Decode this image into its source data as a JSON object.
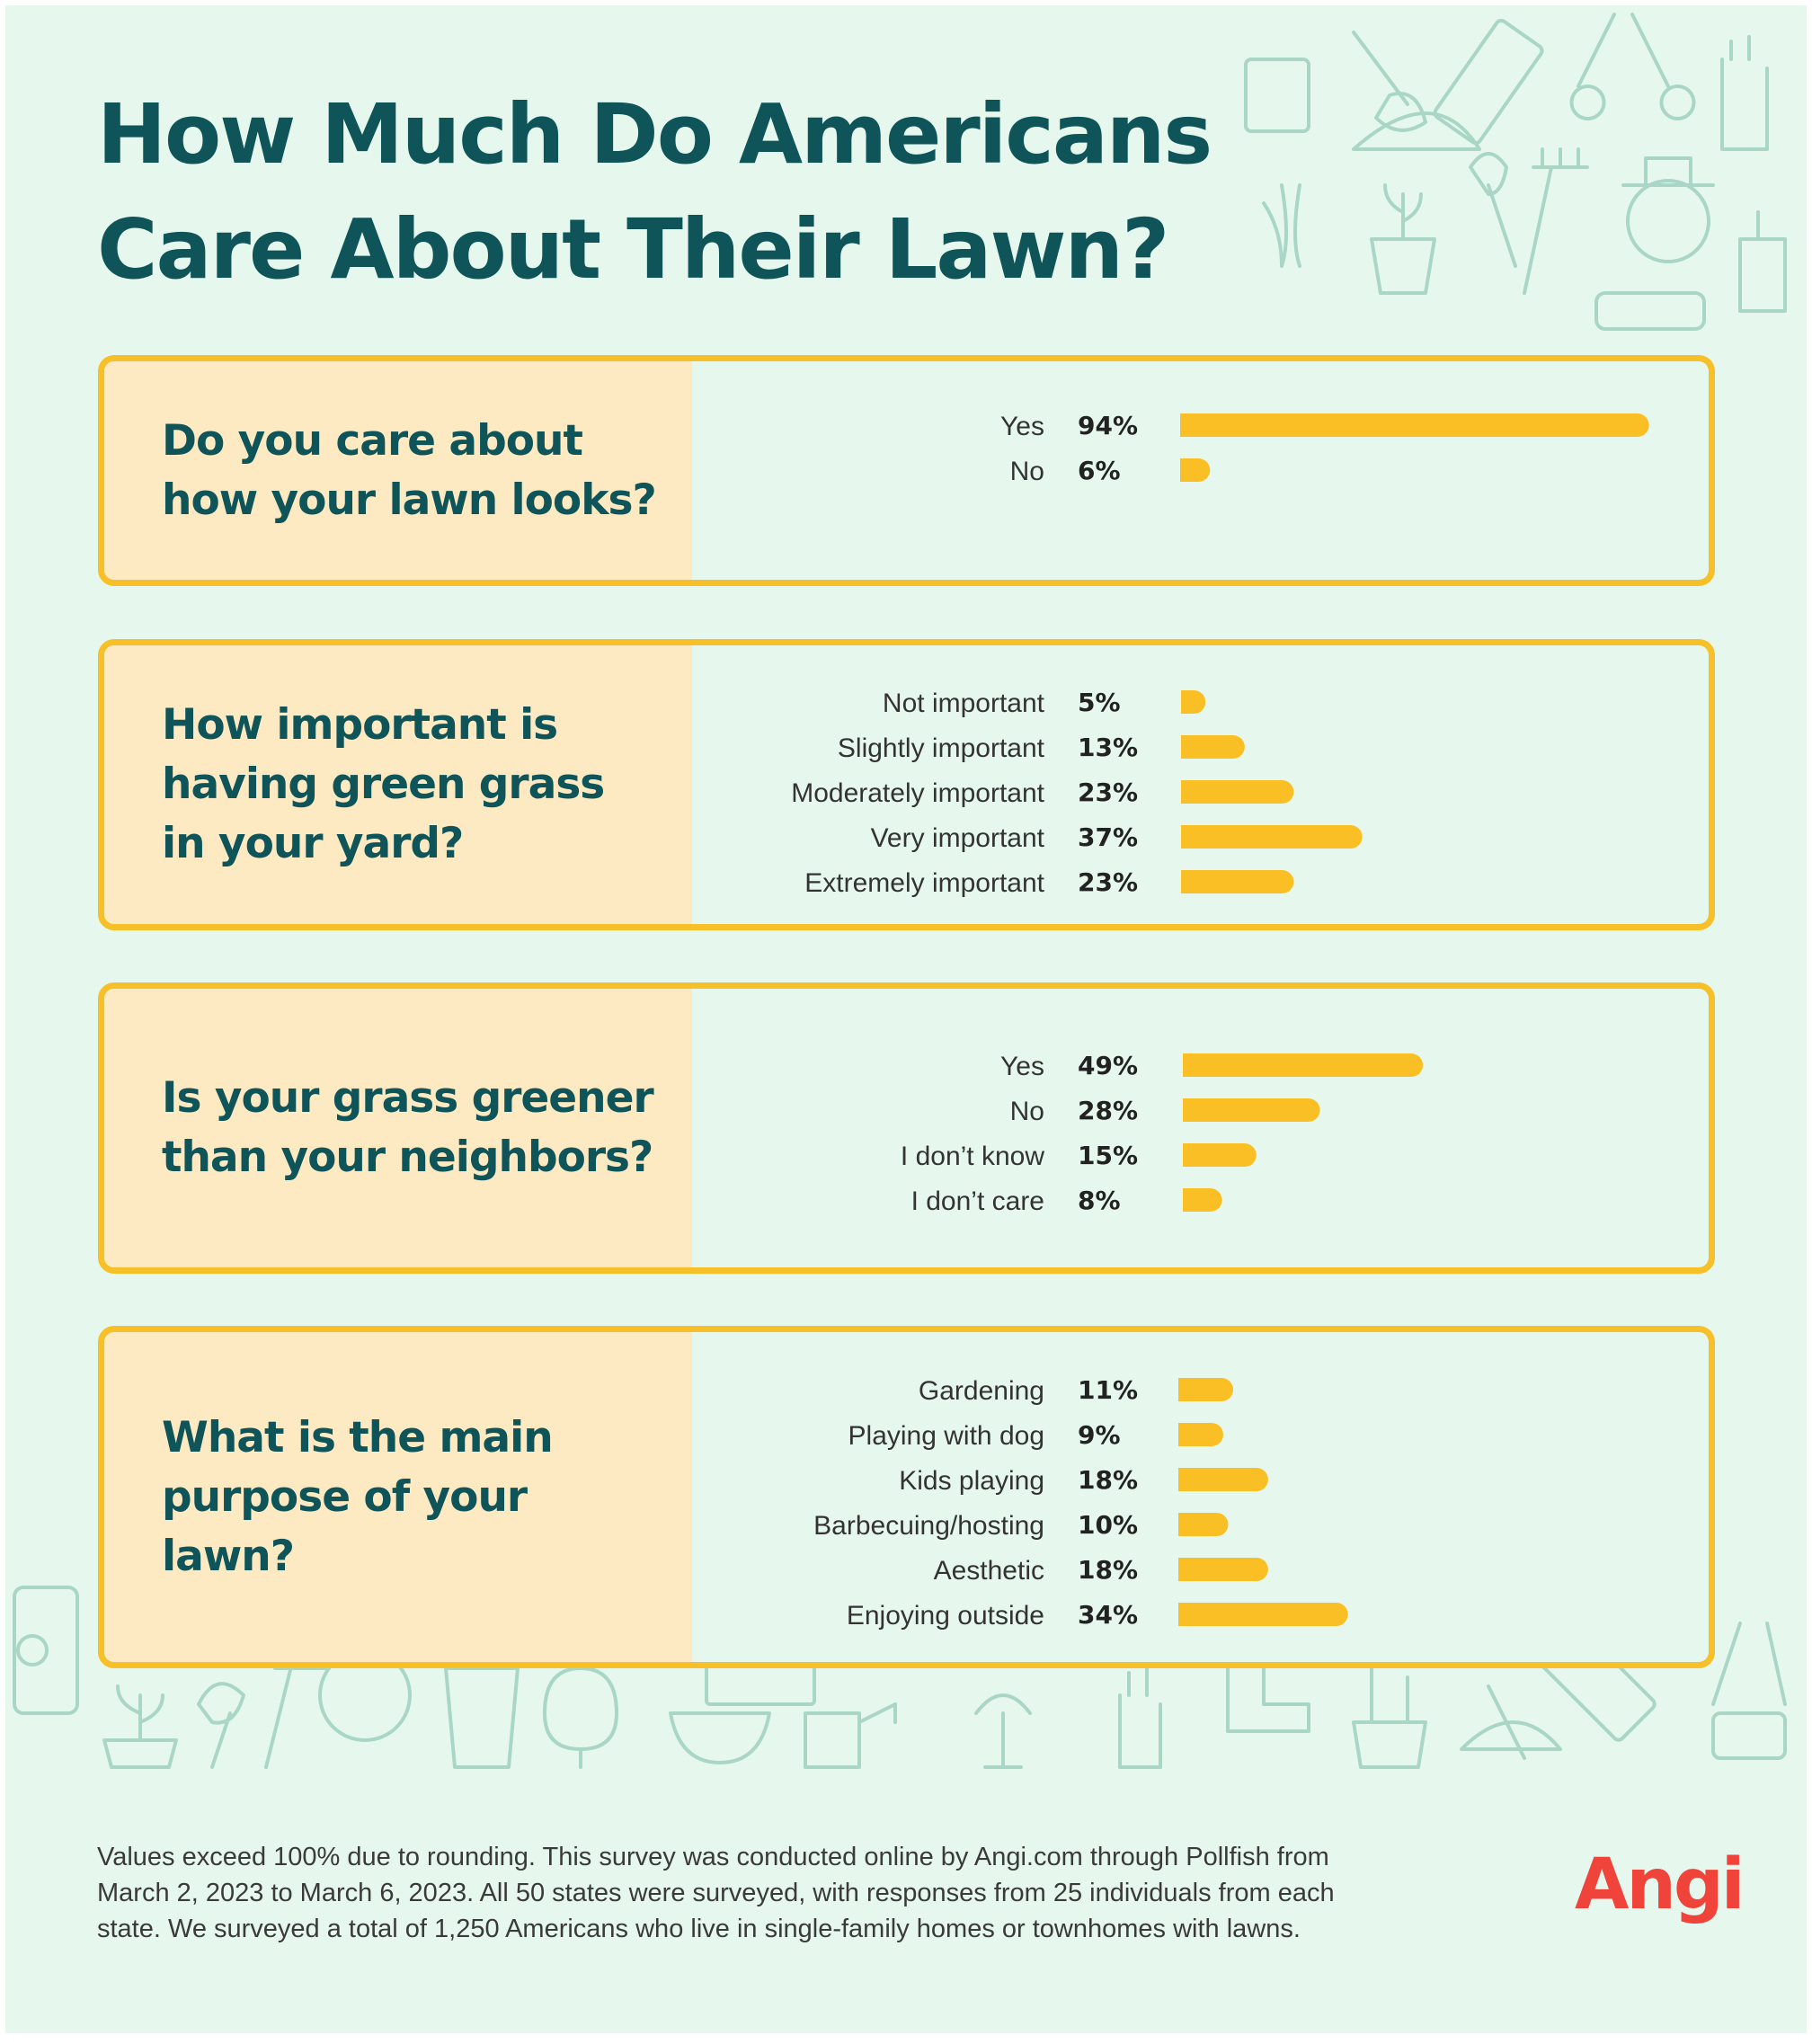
{
  "title_lines": [
    "How Much Do Americans",
    "Care About Their Lawn?"
  ],
  "chart_data": [
    {
      "type": "bar",
      "question_lines": [
        "Do you care about",
        "how your lawn looks?"
      ],
      "categories": [
        "Yes",
        "No"
      ],
      "values": [
        94,
        6
      ],
      "value_labels": [
        "94%",
        "6%"
      ]
    },
    {
      "type": "bar",
      "question_lines": [
        "How important is",
        "having green grass",
        "in your yard?"
      ],
      "categories": [
        "Not important",
        "Slightly important",
        "Moderately important",
        "Very important",
        "Extremely important"
      ],
      "values": [
        5,
        13,
        23,
        37,
        23
      ],
      "value_labels": [
        "5%",
        "13%",
        "23%",
        "37%",
        "23%"
      ]
    },
    {
      "type": "bar",
      "question_lines": [
        "Is your grass greener",
        "than your neighbors?"
      ],
      "categories": [
        "Yes",
        "No",
        "I don’t know",
        "I don’t care"
      ],
      "values": [
        49,
        28,
        15,
        8
      ],
      "value_labels": [
        "49%",
        "28%",
        "15%",
        "8%"
      ]
    },
    {
      "type": "bar",
      "question_lines": [
        "What is the main",
        "purpose of your lawn?"
      ],
      "categories": [
        "Gardening",
        "Playing with dog",
        "Kids playing",
        "Barbecuing/hosting",
        "Aesthetic",
        "Enjoying outside"
      ],
      "values": [
        11,
        9,
        18,
        10,
        18,
        34
      ],
      "value_labels": [
        "11%",
        "9%",
        "18%",
        "10%",
        "18%",
        "34%"
      ]
    }
  ],
  "footnote_lines": [
    "Values exceed 100% due to rounding. This survey was conducted online by Angi.com through Pollfish from",
    "March 2, 2023 to March 6, 2023. All 50 states were surveyed, with responses from 25 individuals from each",
    "state. We surveyed a total of 1,250 Americans who live in single-family homes or townhomes with lawns."
  ],
  "logo_text": "Angi",
  "colors": {
    "background": "#e6f8ee",
    "title": "#0e5458",
    "card_border": "#f7bf28",
    "question_panel": "#fdeac2",
    "bar": "#fbbf26",
    "logo": "#f0433a",
    "icon_outline": "#a9d6c6"
  }
}
